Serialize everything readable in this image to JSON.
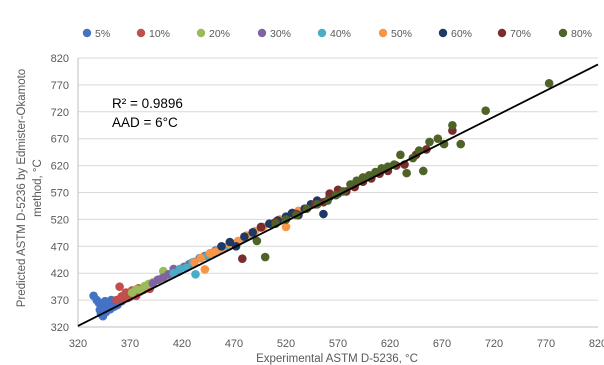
{
  "chart_data": {
    "type": "scatter",
    "xlabel": "Experimental  ASTM D-5236, °C",
    "ylabel_line1": "Predicted ASTM D-5236 by Edmister-Okamoto",
    "ylabel_line2": "method, °C",
    "xlim": [
      320,
      820
    ],
    "ylim": [
      320,
      820
    ],
    "x_ticks": [
      "320",
      "370",
      "420",
      "470",
      "520",
      "570",
      "620",
      "670",
      "720",
      "770",
      "820"
    ],
    "y_ticks": [
      "320",
      "370",
      "420",
      "470",
      "520",
      "570",
      "620",
      "670",
      "720",
      "770",
      "820"
    ],
    "grid": "horizontal",
    "legend_position": "top",
    "annotations": [
      "R² = 0.9896",
      "AAD = 6°C"
    ],
    "fit_line": {
      "x": [
        320,
        820
      ],
      "y": [
        322,
        808
      ]
    },
    "series": [
      {
        "name": "5%",
        "color": "#4472C4",
        "points": [
          [
            335,
            378
          ],
          [
            338,
            370
          ],
          [
            340,
            365
          ],
          [
            341,
            352
          ],
          [
            342,
            345
          ],
          [
            343,
            361
          ],
          [
            344,
            340
          ],
          [
            345,
            357
          ],
          [
            346,
            368
          ],
          [
            347,
            348
          ],
          [
            348,
            364
          ],
          [
            349,
            355
          ],
          [
            350,
            360
          ],
          [
            351,
            353
          ],
          [
            352,
            370
          ],
          [
            353,
            362
          ],
          [
            355,
            358
          ],
          [
            356,
            366
          ],
          [
            358,
            361
          ],
          [
            360,
            372
          ],
          [
            362,
            368
          ],
          [
            364,
            376
          ],
          [
            366,
            380
          ],
          [
            368,
            374
          ]
        ]
      },
      {
        "name": "10%",
        "color": "#C0504D",
        "points": [
          [
            357,
            370
          ],
          [
            360,
            395
          ],
          [
            362,
            377
          ],
          [
            364,
            372
          ],
          [
            366,
            384
          ],
          [
            368,
            380
          ],
          [
            370,
            376
          ],
          [
            372,
            388
          ],
          [
            374,
            383
          ],
          [
            376,
            378
          ],
          [
            378,
            392
          ],
          [
            380,
            386
          ],
          [
            383,
            389
          ],
          [
            386,
            395
          ],
          [
            389,
            391
          ]
        ]
      },
      {
        "name": "20%",
        "color": "#9BBB59",
        "points": [
          [
            372,
            384
          ],
          [
            376,
            390
          ],
          [
            380,
            389
          ],
          [
            384,
            396
          ],
          [
            388,
            400
          ],
          [
            392,
            403
          ],
          [
            396,
            407
          ],
          [
            400,
            410
          ],
          [
            402,
            424
          ],
          [
            405,
            414
          ],
          [
            410,
            419
          ],
          [
            415,
            422
          ]
        ]
      },
      {
        "name": "30%",
        "color": "#8064A2",
        "points": [
          [
            392,
            401
          ],
          [
            397,
            408
          ],
          [
            402,
            412
          ],
          [
            407,
            418
          ],
          [
            412,
            428
          ],
          [
            417,
            423
          ],
          [
            422,
            432
          ],
          [
            427,
            437
          ],
          [
            432,
            441
          ],
          [
            437,
            448
          ],
          [
            442,
            452
          ],
          [
            447,
            457
          ],
          [
            452,
            462
          ],
          [
            457,
            467
          ],
          [
            465,
            470
          ]
        ]
      },
      {
        "name": "40%",
        "color": "#4BACC6",
        "points": [
          [
            412,
            420
          ],
          [
            418,
            428
          ],
          [
            424,
            430
          ],
          [
            430,
            440
          ],
          [
            433,
            418
          ],
          [
            438,
            448
          ],
          [
            444,
            452
          ],
          [
            450,
            458
          ],
          [
            456,
            464
          ],
          [
            462,
            468
          ],
          [
            468,
            474
          ],
          [
            474,
            478
          ],
          [
            480,
            485
          ],
          [
            486,
            490
          ]
        ]
      },
      {
        "name": "50%",
        "color": "#F79646",
        "points": [
          [
            432,
            440
          ],
          [
            438,
            448
          ],
          [
            442,
            427
          ],
          [
            447,
            457
          ],
          [
            452,
            460
          ],
          [
            458,
            466
          ],
          [
            466,
            474
          ],
          [
            474,
            480
          ],
          [
            482,
            490
          ],
          [
            490,
            498
          ],
          [
            498,
            506
          ],
          [
            506,
            512
          ],
          [
            514,
            520
          ],
          [
            520,
            506
          ],
          [
            525,
            530
          ],
          [
            532,
            536
          ]
        ]
      },
      {
        "name": "60%",
        "color": "#1F3864",
        "points": [
          [
            458,
            470
          ],
          [
            466,
            478
          ],
          [
            472,
            470
          ],
          [
            480,
            488
          ],
          [
            488,
            496
          ],
          [
            496,
            506
          ],
          [
            504,
            512
          ],
          [
            512,
            518
          ],
          [
            520,
            525
          ],
          [
            526,
            532
          ],
          [
            532,
            528
          ],
          [
            538,
            540
          ],
          [
            544,
            548
          ],
          [
            550,
            555
          ],
          [
            556,
            530
          ],
          [
            562,
            562
          ],
          [
            570,
            568
          ]
        ]
      },
      {
        "name": "70%",
        "color": "#7B2C2C",
        "points": [
          [
            478,
            447
          ],
          [
            496,
            505
          ],
          [
            510,
            515
          ],
          [
            520,
            520
          ],
          [
            530,
            530
          ],
          [
            540,
            540
          ],
          [
            548,
            548
          ],
          [
            556,
            552
          ],
          [
            562,
            568
          ],
          [
            570,
            575
          ],
          [
            578,
            572
          ],
          [
            586,
            580
          ],
          [
            594,
            590
          ],
          [
            602,
            596
          ],
          [
            610,
            605
          ],
          [
            618,
            610
          ],
          [
            626,
            620
          ],
          [
            634,
            622
          ],
          [
            645,
            640
          ],
          [
            655,
            650
          ],
          [
            680,
            685
          ]
        ]
      },
      {
        "name": "80%",
        "color": "#4F6228",
        "points": [
          [
            492,
            480
          ],
          [
            500,
            450
          ],
          [
            510,
            512
          ],
          [
            520,
            520
          ],
          [
            530,
            528
          ],
          [
            540,
            540
          ],
          [
            550,
            548
          ],
          [
            560,
            555
          ],
          [
            568,
            565
          ],
          [
            575,
            572
          ],
          [
            582,
            585
          ],
          [
            588,
            592
          ],
          [
            594,
            598
          ],
          [
            600,
            602
          ],
          [
            606,
            608
          ],
          [
            612,
            615
          ],
          [
            618,
            618
          ],
          [
            624,
            622
          ],
          [
            630,
            640
          ],
          [
            636,
            606
          ],
          [
            642,
            634
          ],
          [
            648,
            648
          ],
          [
            652,
            610
          ],
          [
            658,
            664
          ],
          [
            666,
            670
          ],
          [
            672,
            660
          ],
          [
            680,
            695
          ],
          [
            688,
            660
          ],
          [
            712,
            722
          ],
          [
            773,
            773
          ]
        ]
      }
    ]
  }
}
